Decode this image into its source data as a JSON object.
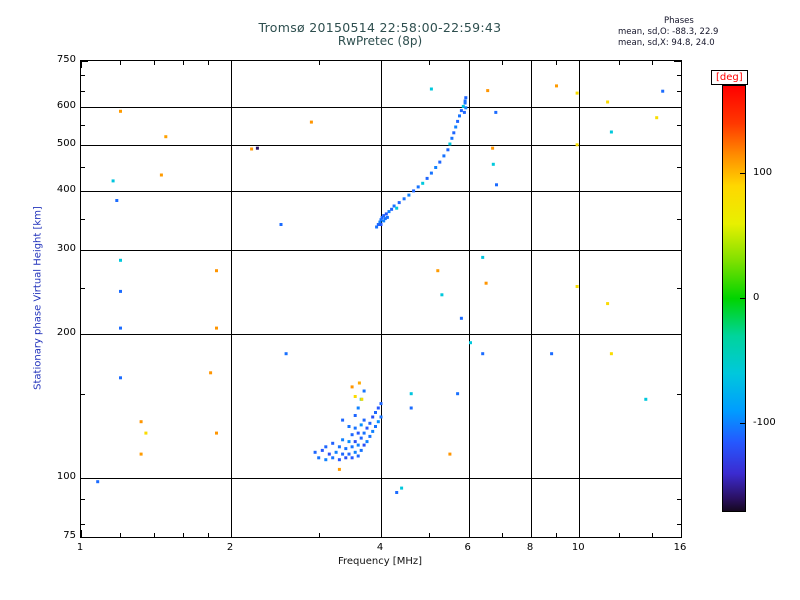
{
  "colors": {
    "title": "#2e4f4f",
    "ylabel": "#2233bb",
    "deg": "#ff0000",
    "grid": "#000000"
  },
  "header": {
    "title": "Tromsø 20150514 22:58:00-22:59:43",
    "subtitle": "RwPretec (8p)",
    "stats": {
      "title": "Phases",
      "line_o": "mean, sd,O: -88.3, 22.9",
      "line_x": "mean, sd,X:  94.8, 24.0"
    }
  },
  "chart_data": {
    "type": "scatter",
    "title": "Tromsø 20150514 22:58:00-22:59:43",
    "subtitle": "RwPretec (8p)",
    "xlabel": "Frequency [MHz]",
    "ylabel": "Stationary phase Virtual Height [km]",
    "x_scale": "log",
    "y_scale": "log",
    "xlim": [
      1,
      16
    ],
    "ylim": [
      75,
      750
    ],
    "x_ticks": [
      1,
      2,
      4,
      6,
      8,
      10,
      16
    ],
    "x_minor_ticks": [
      1.2,
      1.4,
      1.6,
      1.8,
      3,
      5,
      7,
      9,
      12,
      14
    ],
    "y_ticks": [
      75,
      100,
      200,
      300,
      400,
      500,
      600,
      750
    ],
    "y_minor_ticks": [
      80,
      90,
      150,
      250,
      350,
      450,
      550,
      650,
      700
    ],
    "x_gridlines": [
      2,
      4,
      6,
      8,
      10
    ],
    "y_gridlines": [
      100,
      200,
      300,
      400,
      500,
      600
    ],
    "colorbar": {
      "label": "[deg]",
      "ticks": [
        100,
        0,
        -100
      ],
      "range": [
        -170,
        170
      ],
      "stops": [
        [
          170,
          "#ff0000"
        ],
        [
          140,
          "#ff3800"
        ],
        [
          115,
          "#ff8c00"
        ],
        [
          90,
          "#ffd700"
        ],
        [
          60,
          "#e8f000"
        ],
        [
          30,
          "#7ee000"
        ],
        [
          0,
          "#00d400"
        ],
        [
          -30,
          "#00d49c"
        ],
        [
          -60,
          "#00c8dc"
        ],
        [
          -90,
          "#009cff"
        ],
        [
          -115,
          "#2558ff"
        ],
        [
          -140,
          "#3b2bd0"
        ],
        [
          -160,
          "#2a1060"
        ],
        [
          -170,
          "#150820"
        ]
      ]
    },
    "points_format": [
      "frequency_mhz",
      "virtual_height_km",
      "phase_deg"
    ],
    "points": [
      [
        2.95,
        113,
        -110
      ],
      [
        3.0,
        110,
        -105
      ],
      [
        3.05,
        114,
        -115
      ],
      [
        3.1,
        109,
        -100
      ],
      [
        3.1,
        116,
        -110
      ],
      [
        3.15,
        112,
        -120
      ],
      [
        3.2,
        110,
        -105
      ],
      [
        3.2,
        118,
        -112
      ],
      [
        3.25,
        113,
        -100
      ],
      [
        3.3,
        109,
        -115
      ],
      [
        3.3,
        116,
        -105
      ],
      [
        3.35,
        112,
        -110
      ],
      [
        3.35,
        120,
        -100
      ],
      [
        3.4,
        110,
        -120
      ],
      [
        3.4,
        115,
        -105
      ],
      [
        3.45,
        112,
        -110
      ],
      [
        3.45,
        119,
        -95
      ],
      [
        3.5,
        110,
        -115
      ],
      [
        3.5,
        116,
        -105
      ],
      [
        3.5,
        123,
        -110
      ],
      [
        3.55,
        113,
        -100
      ],
      [
        3.55,
        119,
        -120
      ],
      [
        3.55,
        127,
        -105
      ],
      [
        3.6,
        111,
        -110
      ],
      [
        3.6,
        117,
        -100
      ],
      [
        3.6,
        124,
        -115
      ],
      [
        3.65,
        114,
        -105
      ],
      [
        3.65,
        121,
        -110
      ],
      [
        3.65,
        129,
        -95
      ],
      [
        3.7,
        117,
        -120
      ],
      [
        3.7,
        124,
        -105
      ],
      [
        3.7,
        132,
        -110
      ],
      [
        3.75,
        119,
        -100
      ],
      [
        3.75,
        127,
        -115
      ],
      [
        3.8,
        122,
        -105
      ],
      [
        3.8,
        130,
        -110
      ],
      [
        3.85,
        125,
        -100
      ],
      [
        3.85,
        134,
        -120
      ],
      [
        3.9,
        128,
        -105
      ],
      [
        3.9,
        137,
        -110
      ],
      [
        3.95,
        131,
        -95
      ],
      [
        3.95,
        140,
        -115
      ],
      [
        4.0,
        134,
        -105
      ],
      [
        4.0,
        143,
        -110
      ],
      [
        3.6,
        140,
        -100
      ],
      [
        3.65,
        146,
        -60
      ],
      [
        3.7,
        152,
        -105
      ],
      [
        3.55,
        135,
        -110
      ],
      [
        3.45,
        128,
        -105
      ],
      [
        3.35,
        132,
        -110
      ],
      [
        3.5,
        155,
        112
      ],
      [
        3.55,
        148,
        85
      ],
      [
        3.62,
        158,
        105
      ],
      [
        3.66,
        146,
        84
      ],
      [
        3.3,
        104,
        110
      ],
      [
        3.92,
        336,
        -105
      ],
      [
        3.95,
        340,
        -110
      ],
      [
        3.98,
        344,
        -100
      ],
      [
        4.0,
        340,
        -115
      ],
      [
        4.0,
        348,
        -105
      ],
      [
        4.02,
        352,
        -110
      ],
      [
        4.05,
        346,
        -100
      ],
      [
        4.05,
        355,
        -110
      ],
      [
        4.08,
        350,
        -105
      ],
      [
        4.1,
        358,
        -115
      ],
      [
        4.12,
        352,
        -105
      ],
      [
        4.15,
        362,
        -100
      ],
      [
        4.2,
        366,
        -110
      ],
      [
        4.25,
        372,
        -105
      ],
      [
        4.3,
        368,
        -60
      ],
      [
        4.35,
        378,
        -110
      ],
      [
        4.45,
        385,
        -105
      ],
      [
        4.55,
        392,
        -100
      ],
      [
        4.65,
        400,
        -110
      ],
      [
        4.75,
        408,
        -105
      ],
      [
        4.85,
        415,
        -60
      ],
      [
        4.95,
        425,
        -110
      ],
      [
        5.05,
        436,
        -105
      ],
      [
        5.15,
        448,
        -100
      ],
      [
        5.25,
        460,
        -110
      ],
      [
        5.35,
        474,
        -105
      ],
      [
        5.45,
        488,
        -110
      ],
      [
        5.5,
        502,
        -60
      ],
      [
        5.55,
        516,
        -105
      ],
      [
        5.6,
        530,
        -110
      ],
      [
        5.65,
        545,
        -100
      ],
      [
        5.7,
        560,
        -110
      ],
      [
        5.75,
        575,
        -105
      ],
      [
        5.8,
        590,
        -110
      ],
      [
        5.85,
        602,
        -60
      ],
      [
        5.9,
        612,
        -105
      ],
      [
        5.88,
        585,
        -110
      ],
      [
        5.92,
        598,
        -100
      ],
      [
        1.2,
        588,
        110
      ],
      [
        1.48,
        520,
        108
      ],
      [
        2.9,
        558,
        112
      ],
      [
        5.05,
        655,
        -60
      ],
      [
        5.9,
        618,
        -105
      ],
      [
        5.92,
        628,
        -110
      ],
      [
        6.55,
        650,
        112
      ],
      [
        9.0,
        665,
        110
      ],
      [
        9.9,
        642,
        82
      ],
      [
        11.4,
        615,
        85
      ],
      [
        14.3,
        570,
        82
      ],
      [
        14.7,
        648,
        -108
      ],
      [
        2.2,
        490,
        112
      ],
      [
        2.26,
        492,
        -160
      ],
      [
        1.16,
        420,
        -62
      ],
      [
        1.18,
        382,
        -108
      ],
      [
        1.45,
        432,
        110
      ],
      [
        2.52,
        340,
        -108
      ],
      [
        6.7,
        492,
        112
      ],
      [
        6.72,
        455,
        -60
      ],
      [
        6.82,
        412,
        -108
      ],
      [
        9.9,
        500,
        82
      ],
      [
        11.6,
        532,
        -60
      ],
      [
        6.8,
        585,
        -108
      ],
      [
        1.2,
        286,
        -60
      ],
      [
        1.2,
        246,
        -108
      ],
      [
        1.87,
        272,
        112
      ],
      [
        5.2,
        272,
        110
      ],
      [
        5.3,
        242,
        -60
      ],
      [
        6.4,
        290,
        -62
      ],
      [
        6.5,
        256,
        112
      ],
      [
        9.9,
        252,
        82
      ],
      [
        11.4,
        232,
        85
      ],
      [
        1.87,
        206,
        112
      ],
      [
        1.2,
        206,
        -108
      ],
      [
        5.8,
        216,
        -108
      ],
      [
        6.05,
        192,
        -60
      ],
      [
        6.4,
        182,
        -108
      ],
      [
        8.8,
        182,
        -108
      ],
      [
        11.6,
        182,
        84
      ],
      [
        2.58,
        182,
        -106
      ],
      [
        1.82,
        166,
        112
      ],
      [
        1.2,
        162,
        -108
      ],
      [
        1.32,
        131,
        112
      ],
      [
        1.35,
        124,
        84
      ],
      [
        1.32,
        112,
        110
      ],
      [
        1.08,
        98,
        -108
      ],
      [
        1.87,
        124,
        112
      ],
      [
        4.6,
        150,
        -62
      ],
      [
        4.6,
        140,
        -108
      ],
      [
        5.7,
        150,
        -106
      ],
      [
        13.6,
        146,
        -60
      ],
      [
        5.5,
        112,
        112
      ],
      [
        4.4,
        95,
        -60
      ],
      [
        4.3,
        93,
        -108
      ]
    ]
  }
}
